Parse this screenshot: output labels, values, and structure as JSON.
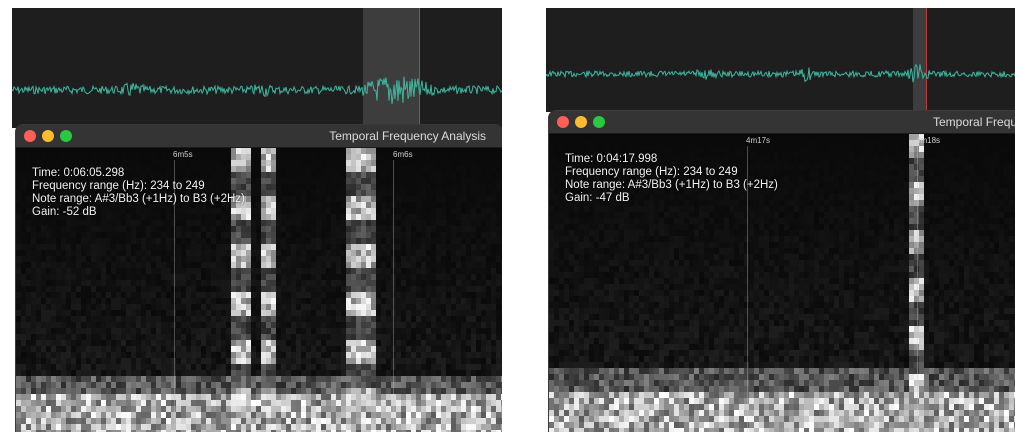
{
  "left": {
    "window_title": "Temporal Frequency Analysis",
    "ticks": [
      "6m5s",
      "6m6s"
    ],
    "readout": {
      "time": "Time: 0:06:05.298",
      "freq": "Frequency range (Hz): 234 to 249",
      "note": "Note range: A#3/Bb3 (+1Hz) to B3 (+2Hz)",
      "gain": "Gain: -52 dB"
    }
  },
  "right": {
    "window_title": "Temporal Frequ",
    "ticks": [
      "4m17s",
      "4m18s"
    ],
    "readout": {
      "time": "Time: 0:04:17.998",
      "freq": "Frequency range (Hz): 234 to 249",
      "note": "Note range: A#3/Bb3 (+1Hz) to B3 (+2Hz)",
      "gain": "Gain: -47 dB"
    }
  },
  "colors": {
    "waveform": "#3fb5a0",
    "background": "#1e1e1e",
    "selection_edge": "#c33a3a"
  },
  "icons": [
    "close-button-icon",
    "minimize-button-icon",
    "zoom-button-icon"
  ]
}
